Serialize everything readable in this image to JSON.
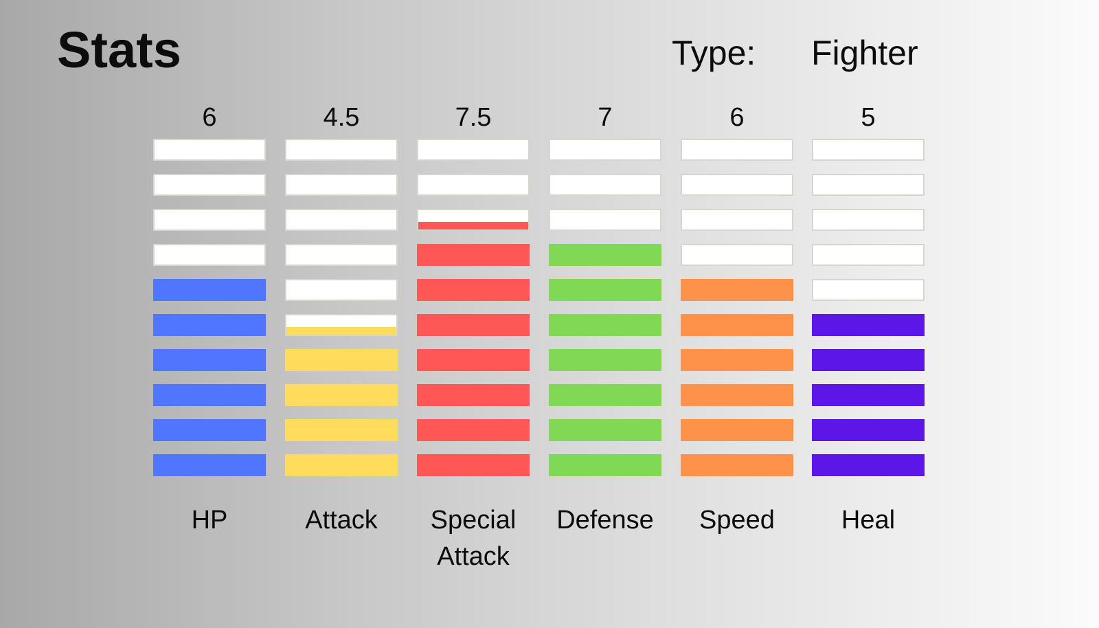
{
  "title": "Stats",
  "type": {
    "label": "Type:",
    "value": "Fighter"
  },
  "chart_data": {
    "type": "bar",
    "categories": [
      "HP",
      "Attack",
      "Special Attack",
      "Defense",
      "Speed",
      "Heal"
    ],
    "series": [
      {
        "values": [
          6,
          4.5,
          7.5,
          7,
          6,
          5
        ]
      }
    ],
    "value_labels": [
      "6",
      "4.5",
      "7.5",
      "7",
      "6",
      "5"
    ],
    "ylim": [
      0,
      10
    ],
    "segments": 10,
    "colors": [
      "#5076ff",
      "#ffdc5c",
      "#ff5656",
      "#80d854",
      "#ff924a",
      "#5c16e8"
    ]
  }
}
